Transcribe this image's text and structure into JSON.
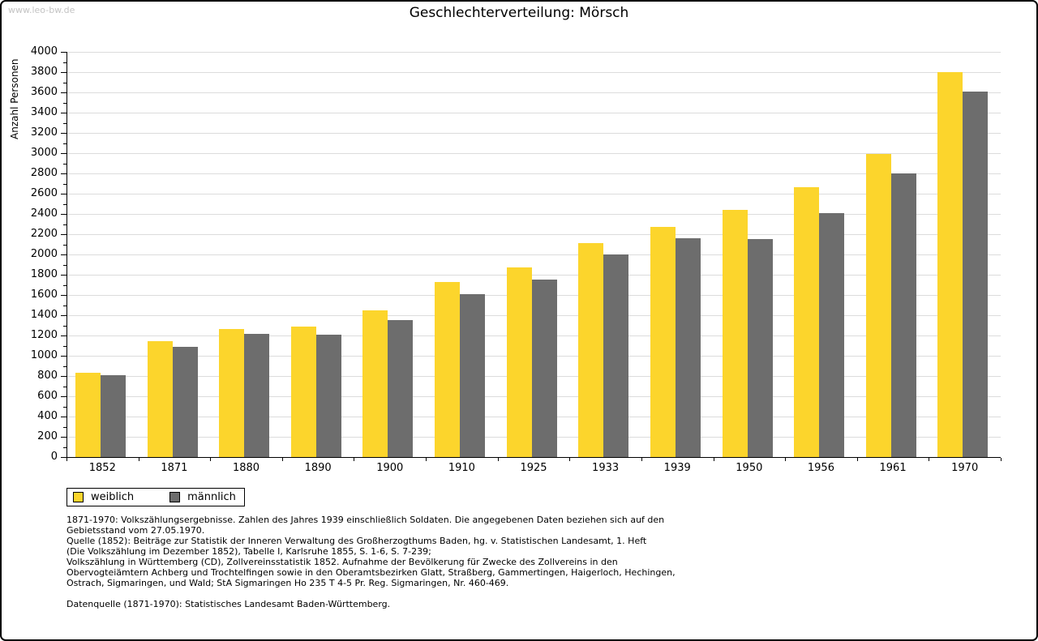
{
  "page": {
    "watermark": "www.leo-bw.de",
    "title": "Geschlechterverteilung: Mörsch"
  },
  "chart_data": {
    "type": "bar",
    "title": "Geschlechterverteilung: Mörsch",
    "xlabel": "",
    "ylabel": "Anzahl Personen",
    "ylim": [
      0,
      4000
    ],
    "ytick_step": 200,
    "y_minor_tick_step": 100,
    "grid": true,
    "legend_position": "bottom-left",
    "categories": [
      "1852",
      "1871",
      "1880",
      "1890",
      "1900",
      "1910",
      "1925",
      "1933",
      "1939",
      "1950",
      "1956",
      "1961",
      "1970"
    ],
    "series": [
      {
        "name": "weiblich",
        "color": "#FCD52C",
        "values": [
          830,
          1145,
          1265,
          1285,
          1450,
          1730,
          1870,
          2115,
          2275,
          2440,
          2665,
          2990,
          3800
        ]
      },
      {
        "name": "männlich",
        "color": "#6D6D6D",
        "values": [
          805,
          1085,
          1215,
          1205,
          1355,
          1610,
          1750,
          2000,
          2160,
          2155,
          2410,
          2800,
          3610
        ]
      }
    ]
  },
  "footnotes": {
    "lines": [
      "1871-1970: Volkszählungsergebnisse. Zahlen des Jahres 1939 einschließlich Soldaten. Die angegebenen Daten beziehen sich auf den",
      "Gebietsstand vom 27.05.1970.",
      "Quelle (1852): Beiträge zur Statistik der Inneren Verwaltung des Großherzogthums Baden, hg. v. Statistischen Landesamt, 1. Heft",
      "(Die Volkszählung im Dezember 1852), Tabelle I, Karlsruhe 1855, S. 1-6, S. 7-239;",
      "Volkszählung in Württemberg (CD), Zollvereinsstatistik 1852. Aufnahme der Bevölkerung für Zwecke des Zollvereins in den",
      "Obervogteiämtern Achberg und Trochtelfingen sowie in den Oberamtsbezirken Glatt, Straßberg, Gammertingen, Haigerloch, Hechingen,",
      "Ostrach, Sigmaringen, und Wald; StA Sigmaringen Ho 235 T 4-5 Pr. Reg. Sigmaringen, Nr. 460-469."
    ],
    "datasource": "Datenquelle (1871-1970): Statistisches Landesamt Baden-Württemberg."
  },
  "colors": {
    "grid": "#dcdcdc",
    "axis": "#000000",
    "watermark": "#c3c3c3",
    "female": "#FCD52C",
    "male": "#6D6D6D"
  }
}
